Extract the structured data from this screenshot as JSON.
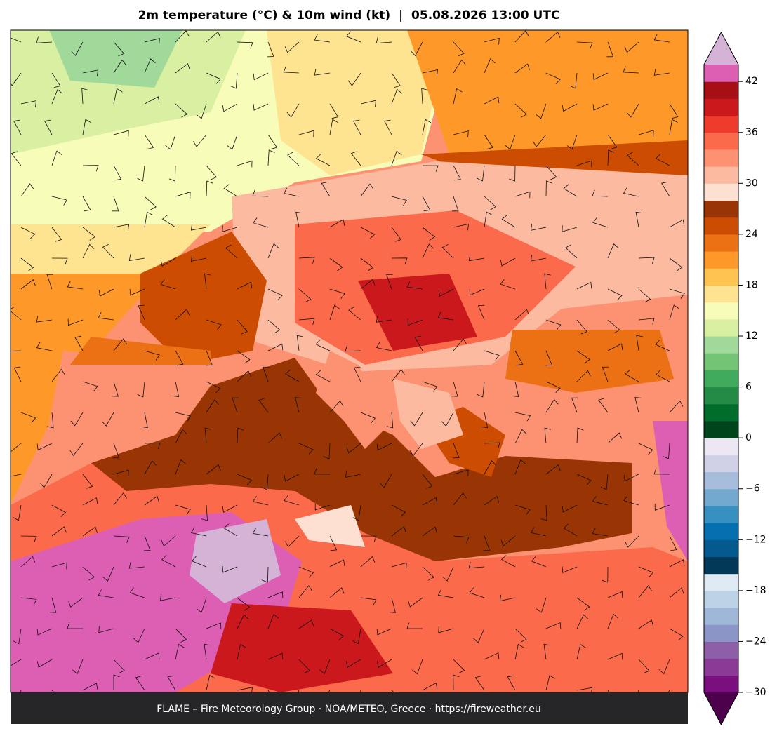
{
  "title": "2m temperature (°C) & 10m wind (kt)  |  05.08.2026 13:00 UTC",
  "footer": "FLAME – Fire Meteorology Group · NOA/METEO, Greece · https://fireweather.eu",
  "colorbar": {
    "range": [
      -30,
      44
    ],
    "colors": [
      "#7a0f7e",
      "#8b3a96",
      "#8c5fa8",
      "#8c96c6",
      "#9fb8d8",
      "#bdd3e5",
      "#deebf5",
      "#023858",
      "#045a8d",
      "#0570b0",
      "#3690c0",
      "#74a9cf",
      "#a6bddb",
      "#d0d1e6",
      "#ece7f2",
      "#00441b",
      "#006d2c",
      "#238b45",
      "#41ab5d",
      "#74c476",
      "#a1d99b",
      "#d9f0a3",
      "#f7fcb9",
      "#fee391",
      "#fec44f",
      "#fe9929",
      "#ec7014",
      "#cc4c02",
      "#993404",
      "#fee0d2",
      "#fcbba1",
      "#fc9272",
      "#fb6a4a",
      "#ef3b2c",
      "#cb181d",
      "#a50f15",
      "#dd5fb4"
    ],
    "extend_low_color": "#4d004b",
    "extend_high_color": "#d4b3d6",
    "ticks": [
      {
        "value": -30,
        "label": "−30"
      },
      {
        "value": -24,
        "label": "−24"
      },
      {
        "value": -18,
        "label": "−18"
      },
      {
        "value": -12,
        "label": "−12"
      },
      {
        "value": -6,
        "label": "−6"
      },
      0,
      6,
      12,
      18,
      24,
      30,
      36,
      42
    ]
  }
}
